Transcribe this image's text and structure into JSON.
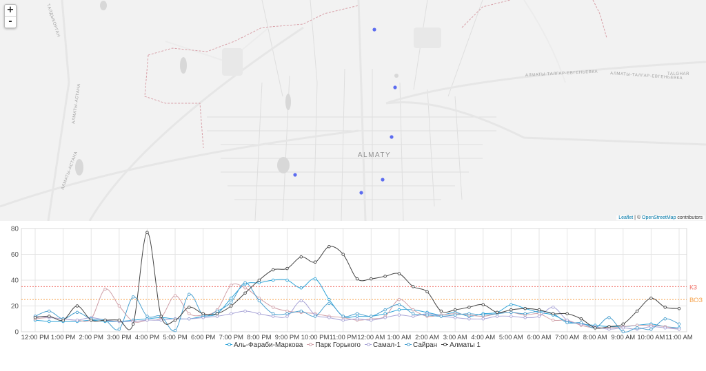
{
  "map": {
    "zoom_in_label": "+",
    "zoom_out_label": "-",
    "city_label": "ALMATY",
    "road_labels": [
      "АЛМАТЫ-ТАЛГАР-ЕВГЕНЬЕВКА",
      "АЛМАТЫ-ТАЛГАР-ЕВГЕНЬЕВКА",
      "TALGHAR",
      "АЛМАТЫ-АСТАНА",
      "АЛМАТЫ-АСТАНА",
      "ТАЛДЫКОРГАН"
    ],
    "marker_color": "#5c6cf0",
    "attribution": {
      "leaflet": "Leaflet",
      "sep": " | © ",
      "osm": "OpenStreetMap",
      "suffix": " contributors"
    }
  },
  "chart_data": {
    "type": "line",
    "categories": [
      "12:00 PM",
      "12:30 PM",
      "1:00 PM",
      "1:30 PM",
      "2:00 PM",
      "2:30 PM",
      "3:00 PM",
      "3:30 PM",
      "4:00 PM",
      "4:30 PM",
      "5:00 PM",
      "5:30 PM",
      "6:00 PM",
      "6:30 PM",
      "7:00 PM",
      "7:30 PM",
      "8:00 PM",
      "8:30 PM",
      "9:00 PM",
      "9:30 PM",
      "10:00 PM",
      "10:30 PM",
      "11:00 PM",
      "11:30 PM",
      "12:00 AM",
      "12:30 AM",
      "1:00 AM",
      "1:30 AM",
      "2:00 AM",
      "2:30 AM",
      "3:00 AM",
      "3:30 AM",
      "4:00 AM",
      "4:30 AM",
      "5:00 AM",
      "5:30 AM",
      "6:00 AM",
      "6:30 AM",
      "7:00 AM",
      "7:30 AM",
      "8:00 AM",
      "8:30 AM",
      "9:00 AM",
      "9:30 AM",
      "10:00 AM",
      "10:30 AM",
      "11:00 AM"
    ],
    "tick_labels": [
      "12:00 PM",
      "1:00 PM",
      "2:00 PM",
      "3:00 PM",
      "4:00 PM",
      "5:00 PM",
      "6:00 PM",
      "7:00 PM",
      "8:00 PM",
      "9:00 PM",
      "10:00 PM",
      "11:00 PM",
      "12:00 AM",
      "1:00 AM",
      "2:00 AM",
      "3:00 AM",
      "4:00 AM",
      "5:00 AM",
      "6:00 AM",
      "7:00 AM",
      "8:00 AM",
      "9:00 AM",
      "10:00 AM",
      "11:00 AM"
    ],
    "ylim": [
      0,
      80
    ],
    "yticks": [
      0,
      20,
      40,
      60,
      80
    ],
    "grid": true,
    "legend_position": "bottom",
    "series": [
      {
        "name": "Аль-Фараби-Маркова",
        "color": "#2fa4d8",
        "values": [
          9,
          8,
          8,
          8,
          9,
          8,
          8,
          9,
          10,
          11,
          10,
          10,
          12,
          14,
          26,
          37,
          38,
          40,
          40,
          34,
          41,
          25,
          12,
          12,
          12,
          14,
          17,
          17,
          15,
          13,
          15,
          12,
          14,
          15,
          21,
          18,
          15,
          13,
          8,
          6,
          5,
          4,
          4,
          5,
          6,
          4,
          3
        ]
      },
      {
        "name": "Парк Горького",
        "color": "#d0a0a8",
        "values": [
          10,
          11,
          10,
          9,
          10,
          33,
          20,
          8,
          9,
          11,
          28,
          14,
          13,
          17,
          36,
          34,
          26,
          19,
          16,
          15,
          14,
          12,
          11,
          9,
          10,
          12,
          25,
          17,
          12,
          13,
          14,
          13,
          12,
          14,
          15,
          13,
          14,
          9,
          9,
          5,
          3,
          3,
          4,
          5,
          5,
          4,
          2
        ]
      },
      {
        "name": "Самал-1",
        "color": "#a7a3d6",
        "values": [
          12,
          11,
          10,
          9,
          11,
          9,
          8,
          8,
          9,
          9,
          10,
          10,
          11,
          12,
          14,
          16,
          14,
          12,
          12,
          24,
          13,
          11,
          9,
          10,
          9,
          11,
          13,
          12,
          14,
          12,
          11,
          10,
          10,
          12,
          12,
          11,
          12,
          19,
          9,
          6,
          4,
          2,
          3,
          2,
          4,
          3,
          2
        ]
      },
      {
        "name": "Сайран",
        "color": "#4aa0cf",
        "values": [
          12,
          16,
          10,
          15,
          10,
          9,
          2,
          27,
          12,
          12,
          1,
          29,
          13,
          16,
          23,
          38,
          24,
          14,
          14,
          16,
          12,
          22,
          12,
          14,
          12,
          17,
          21,
          14,
          13,
          12,
          13,
          14,
          13,
          14,
          15,
          14,
          16,
          14,
          7,
          7,
          3,
          11,
          0,
          3,
          2,
          10,
          6
        ]
      },
      {
        "name": "Алматы 1",
        "color": "#444444",
        "values": [
          11,
          12,
          9,
          20,
          9,
          9,
          9,
          6,
          77,
          12,
          9,
          19,
          14,
          14,
          20,
          30,
          40,
          48,
          49,
          58,
          54,
          66,
          60,
          41,
          41,
          43,
          45,
          35,
          31,
          16,
          17,
          19,
          21,
          15,
          17,
          18,
          17,
          14,
          14,
          10,
          3,
          4,
          6,
          16,
          26,
          19,
          18
        ]
      }
    ],
    "thresholds": [
      {
        "label": "КЗ",
        "value": 35,
        "color": "#f0736a"
      },
      {
        "label": "ВОЗ",
        "value": 25,
        "color": "#f6a34d"
      }
    ]
  }
}
